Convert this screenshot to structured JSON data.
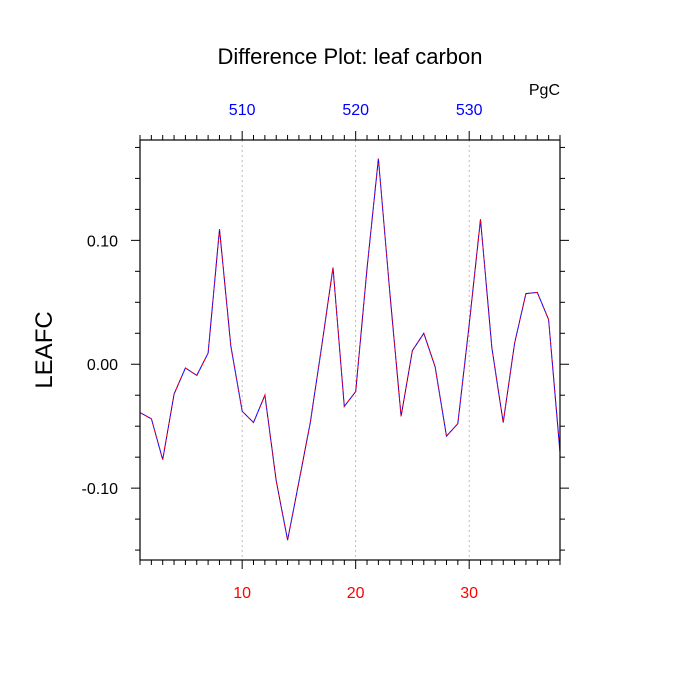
{
  "chart_data": {
    "type": "line",
    "title": "Difference Plot: leaf carbon",
    "units": "PgC",
    "ylabel": "LEAFC",
    "xlabel": "",
    "xlim": [
      1,
      38
    ],
    "ylim": [
      -0.158,
      0.181
    ],
    "grid": "vertical dashed at major x ticks",
    "x_ticks_bottom": [
      {
        "value": 10,
        "label": "10"
      },
      {
        "value": 20,
        "label": "20"
      },
      {
        "value": 30,
        "label": "30"
      }
    ],
    "x_ticks_top": [
      {
        "value": 10,
        "label": "510"
      },
      {
        "value": 20,
        "label": "520"
      },
      {
        "value": 30,
        "label": "530"
      }
    ],
    "y_ticks": [
      {
        "value": -0.1,
        "label": "-0.10"
      },
      {
        "value": 0.0,
        "label": "0.00"
      },
      {
        "value": 0.1,
        "label": "0.10"
      }
    ],
    "series": [
      {
        "x": [
          1,
          2,
          3,
          4,
          5,
          6,
          7,
          8,
          9,
          10,
          11,
          12,
          13,
          14,
          15,
          16,
          17,
          18,
          19,
          20,
          21,
          22,
          23,
          24,
          25,
          26,
          27,
          28,
          29,
          30,
          31,
          32,
          33,
          34,
          35,
          36,
          37,
          38
        ],
        "y": [
          -0.039,
          -0.044,
          -0.077,
          -0.024,
          -0.003,
          -0.009,
          0.009,
          0.109,
          0.015,
          -0.038,
          -0.047,
          -0.025,
          -0.094,
          -0.142,
          -0.095,
          -0.047,
          0.014,
          0.078,
          -0.034,
          -0.022,
          0.077,
          0.166,
          0.059,
          -0.042,
          0.011,
          0.025,
          -0.002,
          -0.058,
          -0.048,
          0.032,
          0.117,
          0.013,
          -0.047,
          0.017,
          0.057,
          0.058,
          0.036,
          -0.071
        ]
      }
    ],
    "colors": {
      "line_dash": "#ff0000",
      "line_solid": "#0000ff",
      "bottom_tick_labels": "#ff0000",
      "top_tick_labels": "#0000ff",
      "grid": "#aaaaaa",
      "axes": "#000000"
    }
  }
}
